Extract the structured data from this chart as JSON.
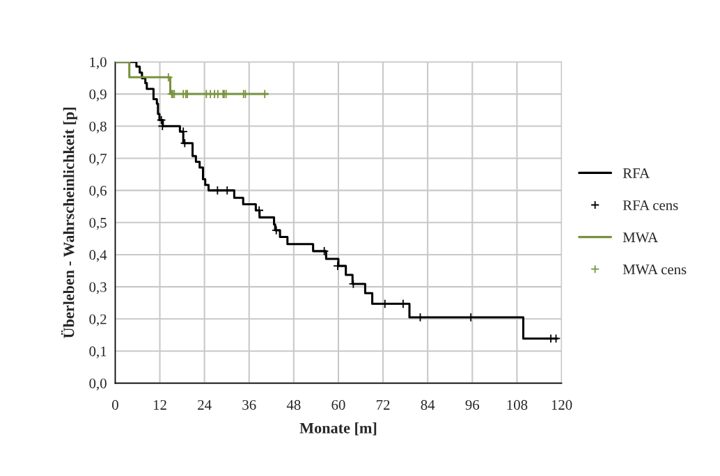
{
  "chart_data": {
    "type": "step",
    "xlabel": "Monate [m]",
    "ylabel": "Überleben - Wahrscheinlichkeit [p]",
    "xlim": [
      0,
      120
    ],
    "xticks": [
      0,
      12,
      24,
      36,
      48,
      60,
      72,
      84,
      96,
      108,
      120
    ],
    "ylim": [
      0,
      1
    ],
    "yticks": [
      {
        "value": 0,
        "label": "0,0"
      },
      {
        "value": 0.1,
        "label": "0,1"
      },
      {
        "value": 0.2,
        "label": "0,2"
      },
      {
        "value": 0.3,
        "label": "0,3"
      },
      {
        "value": 0.4,
        "label": "0,4"
      },
      {
        "value": 0.5,
        "label": "0,5"
      },
      {
        "value": 0.6,
        "label": "0,6"
      },
      {
        "value": 0.7,
        "label": "0,7"
      },
      {
        "value": 0.8,
        "label": "0,8"
      },
      {
        "value": 0.9,
        "label": "0,9"
      },
      {
        "value": 1,
        "label": "1,0"
      }
    ],
    "grid": true,
    "legend": "right",
    "series": [
      {
        "name": "RFA",
        "color": "#000000",
        "x": [
          0,
          5.7,
          6.6,
          7.2,
          8.1,
          8.5,
          10.3,
          11.2,
          11.5,
          11.9,
          12.8,
          17.4,
          18.3,
          20.8,
          21.7,
          22.7,
          23.6,
          24.2,
          25.1,
          32.0,
          34.4,
          37.8,
          38.8,
          42.7,
          43.0,
          44.3,
          46.3,
          53.2,
          56.7,
          60.0,
          62.0,
          63.8,
          67.2,
          69.1,
          79.1,
          109.7,
          118.8
        ],
        "values": [
          1.0,
          0.985,
          0.967,
          0.949,
          0.934,
          0.916,
          0.884,
          0.87,
          0.838,
          0.819,
          0.8,
          0.783,
          0.747,
          0.707,
          0.689,
          0.671,
          0.635,
          0.617,
          0.6,
          0.577,
          0.557,
          0.538,
          0.516,
          0.494,
          0.476,
          0.455,
          0.433,
          0.411,
          0.387,
          0.365,
          0.337,
          0.309,
          0.28,
          0.247,
          0.205,
          0.139,
          0.139
        ]
      },
      {
        "name": "RFA cens",
        "type": "scatter",
        "marker": "cross",
        "color": "#000000",
        "x": [
          12.4,
          12.7,
          18.3,
          18.7,
          27.5,
          30.1,
          38.7,
          43.3,
          56.2,
          59.8,
          64.0,
          72.5,
          77.4,
          82.0,
          95.6,
          117.1,
          118.5
        ],
        "values": [
          0.819,
          0.8,
          0.783,
          0.747,
          0.6,
          0.6,
          0.538,
          0.476,
          0.411,
          0.365,
          0.309,
          0.247,
          0.247,
          0.205,
          0.205,
          0.139,
          0.139
        ]
      },
      {
        "name": "MWA",
        "color": "#77933c",
        "x": [
          0,
          3.8,
          14.8,
          41.0
        ],
        "values": [
          1.0,
          0.952,
          0.9,
          0.9
        ]
      },
      {
        "name": "MWA cens",
        "type": "scatter",
        "marker": "cross",
        "color": "#77933c",
        "x": [
          14.3,
          15.2,
          15.5,
          15.9,
          18.3,
          19.0,
          19.4,
          24.5,
          25.6,
          26.7,
          27.6,
          29.0,
          29.3,
          29.8,
          34.5,
          35.0,
          40.2
        ],
        "values": [
          0.952,
          0.9,
          0.9,
          0.9,
          0.9,
          0.9,
          0.9,
          0.9,
          0.9,
          0.9,
          0.9,
          0.9,
          0.9,
          0.9,
          0.9,
          0.9,
          0.9
        ]
      }
    ]
  }
}
